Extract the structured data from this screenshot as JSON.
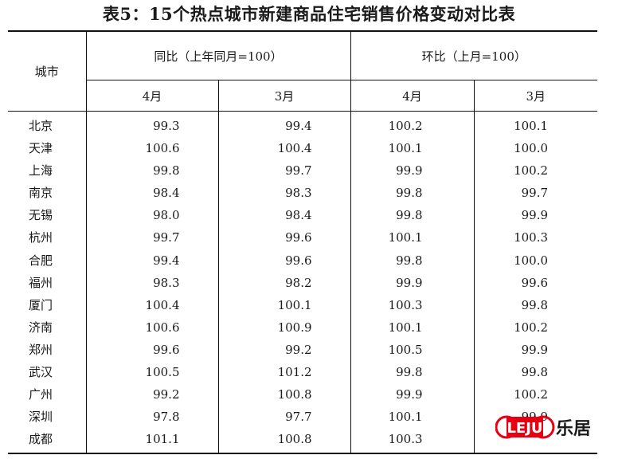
{
  "title": "表5：15个热点城市新建商品住宅销售价格变动对比表",
  "header": {
    "city": "城市",
    "yoy": "同比（上年同月=100）",
    "mom": "环比（上月=100）",
    "yoy_apr": "4月",
    "yoy_mar": "3月",
    "mom_apr": "4月",
    "mom_mar": "3月"
  },
  "rows": [
    {
      "city": "北京",
      "yoy_apr": "99.3",
      "yoy_mar": "99.4",
      "mom_apr": "100.2",
      "mom_mar": "100.1"
    },
    {
      "city": "天津",
      "yoy_apr": "100.6",
      "yoy_mar": "100.4",
      "mom_apr": "100.1",
      "mom_mar": "100.0"
    },
    {
      "city": "上海",
      "yoy_apr": "99.8",
      "yoy_mar": "99.7",
      "mom_apr": "99.9",
      "mom_mar": "100.2"
    },
    {
      "city": "南京",
      "yoy_apr": "98.4",
      "yoy_mar": "98.3",
      "mom_apr": "99.8",
      "mom_mar": "99.7"
    },
    {
      "city": "无锡",
      "yoy_apr": "98.0",
      "yoy_mar": "98.4",
      "mom_apr": "99.8",
      "mom_mar": "99.9"
    },
    {
      "city": "杭州",
      "yoy_apr": "99.7",
      "yoy_mar": "99.6",
      "mom_apr": "100.1",
      "mom_mar": "100.3"
    },
    {
      "city": "合肥",
      "yoy_apr": "99.4",
      "yoy_mar": "99.6",
      "mom_apr": "99.8",
      "mom_mar": "100.0"
    },
    {
      "city": "福州",
      "yoy_apr": "98.3",
      "yoy_mar": "98.2",
      "mom_apr": "99.9",
      "mom_mar": "99.6"
    },
    {
      "city": "厦门",
      "yoy_apr": "100.4",
      "yoy_mar": "100.1",
      "mom_apr": "100.3",
      "mom_mar": "99.8"
    },
    {
      "city": "济南",
      "yoy_apr": "100.6",
      "yoy_mar": "100.9",
      "mom_apr": "100.1",
      "mom_mar": "100.2"
    },
    {
      "city": "郑州",
      "yoy_apr": "99.6",
      "yoy_mar": "99.2",
      "mom_apr": "100.5",
      "mom_mar": "99.9"
    },
    {
      "city": "武汉",
      "yoy_apr": "100.5",
      "yoy_mar": "101.2",
      "mom_apr": "99.8",
      "mom_mar": "99.8"
    },
    {
      "city": "广州",
      "yoy_apr": "99.2",
      "yoy_mar": "100.8",
      "mom_apr": "99.9",
      "mom_mar": "100.2"
    },
    {
      "city": "深圳",
      "yoy_apr": "97.8",
      "yoy_mar": "97.7",
      "mom_apr": "100.1",
      "mom_mar": "99.9"
    },
    {
      "city": "成都",
      "yoy_apr": "101.1",
      "yoy_mar": "100.8",
      "mom_apr": "100.3",
      "mom_mar": ""
    }
  ],
  "watermark": {
    "logo_text": "LEJU",
    "brand_text": "乐居",
    "color": "#e60012"
  }
}
